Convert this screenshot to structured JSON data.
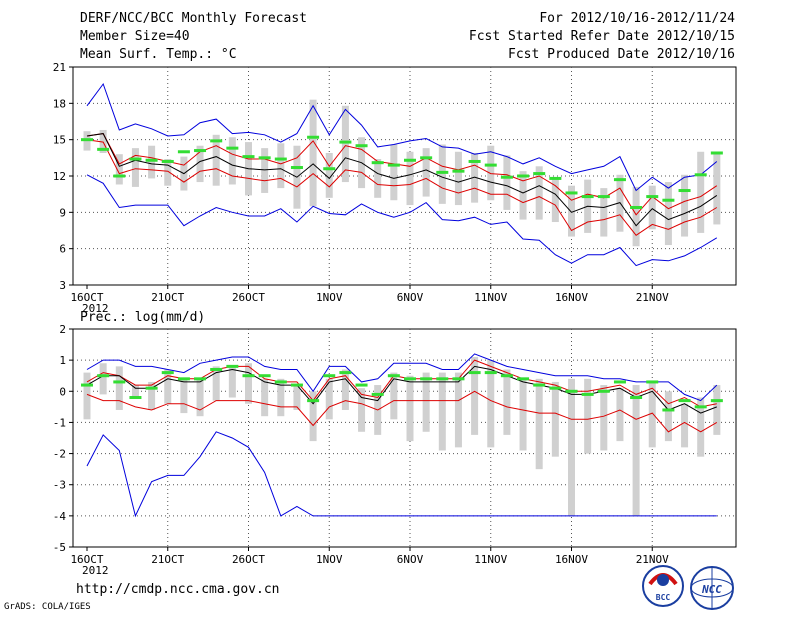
{
  "header": {
    "title": "DERF/NCC/BCC Monthly Forecast",
    "member_size": "Member Size=40",
    "variable": "Mean Surf. Temp.: °C",
    "period": "For 2012/10/16-2012/11/24",
    "started": "Fcst Started Refer Date 2012/10/15",
    "produced": "Fcst Produced Date 2012/10/16"
  },
  "footer": {
    "url": "http://cmdp.ncc.cma.gov.cn",
    "credit": "GrADS: COLA/IGES",
    "logo_bcc_label": "BCC",
    "logo_ncc_label": "NCC"
  },
  "colors": {
    "max": "#0000dd",
    "pct": "#dd0000",
    "mean": "#000000",
    "bar": "#d0d0d0",
    "obs": "#33dd33"
  },
  "chart_data": [
    {
      "type": "line",
      "title": "Mean Surf. Temp.: °C",
      "ylim": [
        3,
        21
      ],
      "yticks": [
        3,
        6,
        9,
        12,
        15,
        18,
        21
      ],
      "xtick_labels": [
        "16OCT",
        "21OCT",
        "26OCT",
        "1NOV",
        "6NOV",
        "11NOV",
        "16NOV",
        "21NOV"
      ],
      "xtick_index": [
        0,
        5,
        10,
        15,
        20,
        25,
        30,
        35
      ],
      "year_label": "2012",
      "days": 40,
      "series": [
        {
          "name": "max",
          "values": [
            17.8,
            19.6,
            15.8,
            16.3,
            15.9,
            15.3,
            15.4,
            16.4,
            16.7,
            15.5,
            15.6,
            15.4,
            14.8,
            15.5,
            17.8,
            15.4,
            17.5,
            16.2,
            14.4,
            14.6,
            14.9,
            15.1,
            14.4,
            14.3,
            13.8,
            14.0,
            13.6,
            13.0,
            13.5,
            12.8,
            12.2,
            12.5,
            12.8,
            13.6,
            10.8,
            11.9,
            11.0,
            11.9,
            12.1,
            13.2
          ]
        },
        {
          "name": "p_upper",
          "values": [
            15.3,
            15.5,
            13.0,
            13.7,
            13.5,
            13.2,
            12.9,
            14.0,
            14.5,
            13.8,
            13.4,
            13.4,
            13.0,
            13.5,
            14.9,
            12.8,
            14.5,
            14.2,
            13.2,
            13.0,
            12.8,
            13.5,
            12.8,
            12.5,
            12.9,
            12.2,
            12.1,
            11.6,
            12.0,
            11.2,
            10.0,
            10.5,
            10.2,
            11.0,
            8.8,
            10.3,
            9.3,
            9.9,
            10.3,
            11.2
          ]
        },
        {
          "name": "mean",
          "values": [
            15.3,
            15.5,
            12.8,
            13.3,
            13.0,
            12.9,
            12.2,
            13.2,
            13.6,
            12.9,
            12.6,
            12.5,
            12.6,
            11.9,
            13.0,
            11.8,
            13.5,
            13.1,
            12.2,
            11.8,
            12.1,
            12.5,
            11.9,
            11.5,
            11.9,
            11.5,
            11.2,
            10.6,
            11.2,
            10.5,
            9.0,
            9.5,
            9.4,
            9.8,
            7.9,
            9.3,
            8.4,
            8.9,
            9.5,
            10.4
          ]
        },
        {
          "name": "p_lower",
          "values": [
            15.0,
            14.8,
            12.2,
            12.6,
            12.5,
            12.4,
            11.5,
            12.4,
            12.6,
            12.0,
            11.8,
            11.6,
            11.8,
            11.1,
            12.2,
            11.1,
            12.5,
            12.3,
            11.3,
            11.2,
            11.3,
            11.8,
            11.0,
            10.6,
            11.0,
            10.5,
            10.5,
            9.8,
            10.3,
            9.6,
            7.5,
            8.2,
            8.4,
            8.8,
            7.1,
            8.0,
            7.6,
            8.2,
            8.6,
            9.4
          ]
        },
        {
          "name": "min",
          "values": [
            12.1,
            11.4,
            9.4,
            9.6,
            9.6,
            9.6,
            7.9,
            8.7,
            9.4,
            9.0,
            8.7,
            8.7,
            9.3,
            8.2,
            9.5,
            8.9,
            8.8,
            9.7,
            9.0,
            8.6,
            9.0,
            9.8,
            8.4,
            8.3,
            8.6,
            8.0,
            8.2,
            6.8,
            6.7,
            5.5,
            4.8,
            5.5,
            5.5,
            6.1,
            4.6,
            5.1,
            5.0,
            5.4,
            6.1,
            6.9
          ]
        }
      ],
      "bars": [
        [
          14.1,
          15.7
        ],
        [
          13.9,
          15.8
        ],
        [
          11.3,
          13.8
        ],
        [
          11.1,
          14.3
        ],
        [
          11.8,
          14.5
        ],
        [
          11.2,
          13.4
        ],
        [
          10.8,
          13.6
        ],
        [
          11.5,
          14.5
        ],
        [
          11.2,
          15.4
        ],
        [
          11.3,
          15.2
        ],
        [
          10.4,
          14.8
        ],
        [
          10.6,
          14.3
        ],
        [
          11.0,
          14.7
        ],
        [
          9.3,
          14.5
        ],
        [
          9.5,
          18.3
        ],
        [
          10.2,
          13.9
        ],
        [
          11.5,
          17.8
        ],
        [
          11.0,
          15.2
        ],
        [
          10.2,
          13.4
        ],
        [
          10.0,
          14.6
        ],
        [
          9.6,
          14.0
        ],
        [
          10.3,
          14.3
        ],
        [
          9.7,
          14.6
        ],
        [
          9.6,
          14.0
        ],
        [
          9.8,
          13.9
        ],
        [
          10.0,
          14.5
        ],
        [
          9.2,
          13.7
        ],
        [
          8.4,
          12.4
        ],
        [
          8.4,
          12.8
        ],
        [
          8.2,
          11.8
        ],
        [
          7.0,
          11.2
        ],
        [
          7.3,
          11.7
        ],
        [
          7.0,
          11.0
        ],
        [
          7.4,
          12.1
        ],
        [
          6.2,
          11.1
        ],
        [
          7.6,
          11.2
        ],
        [
          6.3,
          11.5
        ],
        [
          7.0,
          12.1
        ],
        [
          7.3,
          14.0
        ],
        [
          8.0,
          14.0
        ]
      ],
      "obs": [
        15.0,
        14.2,
        12.0,
        13.4,
        13.3,
        13.2,
        14.0,
        14.1,
        14.9,
        14.3,
        13.6,
        13.5,
        13.4,
        12.7,
        15.2,
        12.6,
        14.8,
        14.5,
        13.1,
        12.9,
        13.3,
        13.5,
        12.3,
        12.4,
        13.2,
        12.9,
        11.9,
        12.0,
        12.2,
        11.8,
        10.6,
        10.3,
        10.3,
        11.7,
        9.4,
        10.3,
        10.0,
        10.8,
        12.1,
        13.9
      ]
    },
    {
      "type": "line",
      "title": "Prec.: log(mm/d)",
      "ylim": [
        -5,
        2
      ],
      "yticks": [
        -5,
        -4,
        -3,
        -2,
        -1,
        0,
        1,
        2
      ],
      "xtick_labels": [
        "16OCT",
        "21OCT",
        "26OCT",
        "1NOV",
        "6NOV",
        "11NOV",
        "16NOV",
        "21NOV"
      ],
      "xtick_index": [
        0,
        5,
        10,
        15,
        20,
        25,
        30,
        35
      ],
      "year_label": "2012",
      "days": 40,
      "series": [
        {
          "name": "max",
          "values": [
            0.7,
            1.0,
            1.0,
            0.8,
            0.8,
            0.7,
            0.6,
            0.9,
            1.0,
            1.1,
            1.1,
            0.8,
            0.7,
            0.7,
            0.0,
            0.8,
            0.8,
            0.3,
            0.4,
            0.9,
            0.9,
            0.9,
            0.7,
            0.7,
            1.2,
            1.0,
            0.8,
            0.7,
            0.6,
            0.5,
            0.5,
            0.5,
            0.4,
            0.4,
            0.3,
            0.3,
            0.3,
            -0.1,
            -0.3,
            0.2
          ]
        },
        {
          "name": "p_upper",
          "values": [
            0.3,
            0.6,
            0.5,
            0.2,
            0.2,
            0.5,
            0.4,
            0.4,
            0.7,
            0.8,
            0.8,
            0.4,
            0.3,
            0.3,
            -0.3,
            0.4,
            0.5,
            -0.1,
            -0.2,
            0.5,
            0.4,
            0.4,
            0.4,
            0.4,
            1.0,
            0.8,
            0.6,
            0.4,
            0.3,
            0.2,
            0.0,
            0.0,
            0.1,
            0.2,
            -0.1,
            0.1,
            -0.4,
            -0.2,
            -0.5,
            -0.4
          ]
        },
        {
          "name": "mean",
          "values": [
            0.2,
            0.5,
            0.5,
            0.1,
            0.1,
            0.4,
            0.3,
            0.3,
            0.6,
            0.7,
            0.6,
            0.3,
            0.2,
            0.2,
            -0.4,
            0.3,
            0.4,
            -0.2,
            -0.3,
            0.4,
            0.3,
            0.3,
            0.3,
            0.3,
            0.8,
            0.7,
            0.5,
            0.3,
            0.2,
            0.1,
            -0.1,
            -0.1,
            0.0,
            0.1,
            -0.2,
            0.0,
            -0.6,
            -0.4,
            -0.7,
            -0.5
          ]
        },
        {
          "name": "p_lower",
          "values": [
            -0.1,
            -0.3,
            -0.3,
            -0.5,
            -0.6,
            -0.4,
            -0.4,
            -0.6,
            -0.3,
            -0.3,
            -0.3,
            -0.4,
            -0.5,
            -0.5,
            -1.1,
            -0.5,
            -0.3,
            -0.4,
            -0.6,
            -0.3,
            -0.3,
            -0.3,
            -0.3,
            -0.3,
            0.0,
            -0.3,
            -0.5,
            -0.6,
            -0.7,
            -0.7,
            -0.9,
            -0.9,
            -0.8,
            -0.6,
            -0.9,
            -0.7,
            -1.3,
            -1.0,
            -1.3,
            -1.0
          ]
        },
        {
          "name": "min",
          "values": [
            -2.4,
            -1.4,
            -1.9,
            -4.0,
            -2.9,
            -2.7,
            -2.7,
            -2.1,
            -1.3,
            -1.5,
            -1.8,
            -2.6,
            -4.0,
            -3.7,
            -4.0,
            -4.0,
            -4.0,
            -4.0,
            -4.0,
            -4.0,
            -4.0,
            -4.0,
            -4.0,
            -4.0,
            -4.0,
            -4.0,
            -4.0,
            -4.0,
            -4.0,
            -4.0,
            -4.0,
            -4.0,
            -4.0,
            -4.0,
            -4.0,
            -4.0,
            -4.0,
            -4.0,
            -4.0,
            -4.0
          ]
        }
      ],
      "bars": [
        [
          -0.9,
          0.6
        ],
        [
          -0.1,
          0.9
        ],
        [
          -0.6,
          0.8
        ],
        [
          -0.2,
          0.2
        ],
        [
          -0.6,
          0.3
        ],
        [
          -0.4,
          0.7
        ],
        [
          -0.7,
          0.4
        ],
        [
          -0.8,
          0.4
        ],
        [
          -0.3,
          0.8
        ],
        [
          -0.2,
          0.8
        ],
        [
          -0.4,
          0.9
        ],
        [
          -0.8,
          0.4
        ],
        [
          -0.8,
          0.4
        ],
        [
          -0.6,
          0.2
        ],
        [
          -1.6,
          0.0
        ],
        [
          -0.9,
          0.4
        ],
        [
          -0.6,
          0.7
        ],
        [
          -1.3,
          0.1
        ],
        [
          -1.4,
          0.2
        ],
        [
          -0.9,
          0.6
        ],
        [
          -1.6,
          0.5
        ],
        [
          -1.3,
          0.6
        ],
        [
          -1.9,
          0.6
        ],
        [
          -1.8,
          0.6
        ],
        [
          -1.4,
          1.1
        ],
        [
          -1.8,
          1.0
        ],
        [
          -1.4,
          0.7
        ],
        [
          -1.9,
          0.4
        ],
        [
          -2.5,
          0.4
        ],
        [
          -2.1,
          0.3
        ],
        [
          -4.0,
          0.4
        ],
        [
          -2.0,
          0.4
        ],
        [
          -1.9,
          0.2
        ],
        [
          -1.6,
          0.1
        ],
        [
          -4.0,
          0.2
        ],
        [
          -1.8,
          0.3
        ],
        [
          -1.6,
          0.0
        ],
        [
          -1.8,
          -0.4
        ],
        [
          -2.1,
          -0.2
        ],
        [
          -1.4,
          0.2
        ]
      ],
      "obs": [
        0.2,
        0.5,
        0.3,
        -0.2,
        0.1,
        0.6,
        0.4,
        0.4,
        0.7,
        0.8,
        0.5,
        0.5,
        0.3,
        0.2,
        -0.3,
        0.5,
        0.6,
        0.2,
        -0.1,
        0.5,
        0.4,
        0.4,
        0.4,
        0.4,
        0.6,
        0.6,
        0.5,
        0.4,
        0.2,
        0.1,
        0.0,
        -0.1,
        0.0,
        0.3,
        -0.2,
        0.3,
        -0.6,
        -0.3,
        -0.5,
        -0.3
      ]
    }
  ]
}
